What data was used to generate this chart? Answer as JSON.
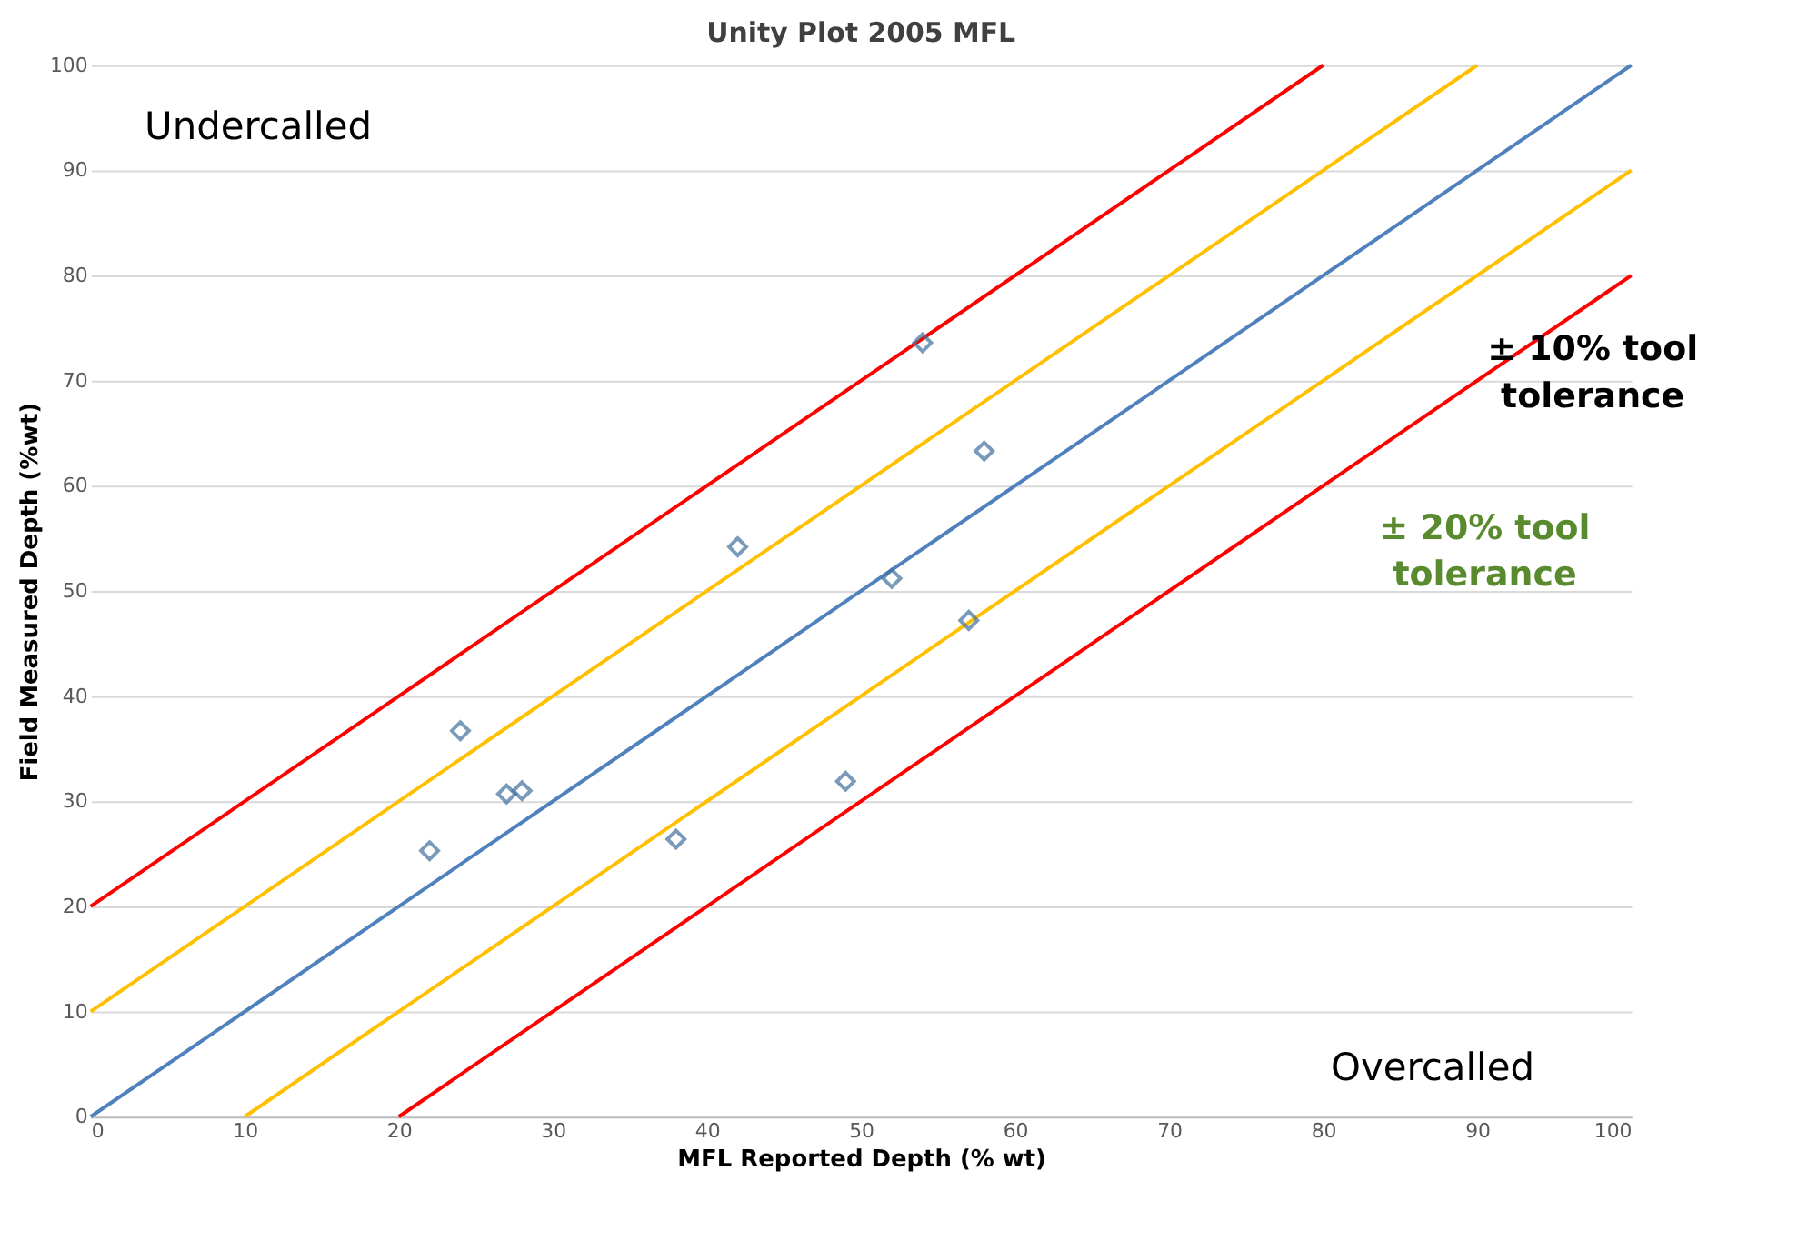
{
  "chart_data": {
    "type": "scatter",
    "title": "Unity Plot 2005 MFL",
    "xlabel": "MFL Reported Depth (% wt)",
    "ylabel": "Field Measured Depth (%wt)",
    "xlim": [
      0,
      100
    ],
    "ylim": [
      0,
      100
    ],
    "xticks": [
      0,
      10,
      20,
      30,
      40,
      50,
      60,
      70,
      80,
      90,
      100
    ],
    "yticks": [
      0,
      10,
      20,
      30,
      40,
      50,
      60,
      70,
      80,
      90,
      100
    ],
    "grid": "y",
    "series": [
      {
        "type": "line",
        "color": "#ff0000",
        "x": [
          0,
          80
        ],
        "values": [
          20,
          100
        ]
      },
      {
        "type": "line",
        "color": "#ffc000",
        "x": [
          0,
          90
        ],
        "values": [
          10,
          100
        ]
      },
      {
        "type": "line",
        "color": "#4f81bd",
        "x": [
          0,
          100
        ],
        "values": [
          0,
          100
        ]
      },
      {
        "type": "line",
        "color": "#ffc000",
        "x": [
          10,
          100
        ],
        "values": [
          0,
          90
        ]
      },
      {
        "type": "line",
        "color": "#ff0000",
        "x": [
          20,
          100
        ],
        "values": [
          0,
          80
        ]
      },
      {
        "marker": "diamond",
        "color": "#41719c",
        "x": [
          22,
          24,
          27,
          28,
          38,
          42,
          49,
          52,
          54,
          57,
          58
        ],
        "values": [
          25.3,
          36.7,
          30.7,
          31,
          26.4,
          54.2,
          31.9,
          51.2,
          73.6,
          47.2,
          63.3
        ]
      }
    ],
    "annotations": [
      "Undercalled",
      "Overcalled",
      "± 10% tool tolerance",
      "± 20% tool tolerance"
    ]
  }
}
